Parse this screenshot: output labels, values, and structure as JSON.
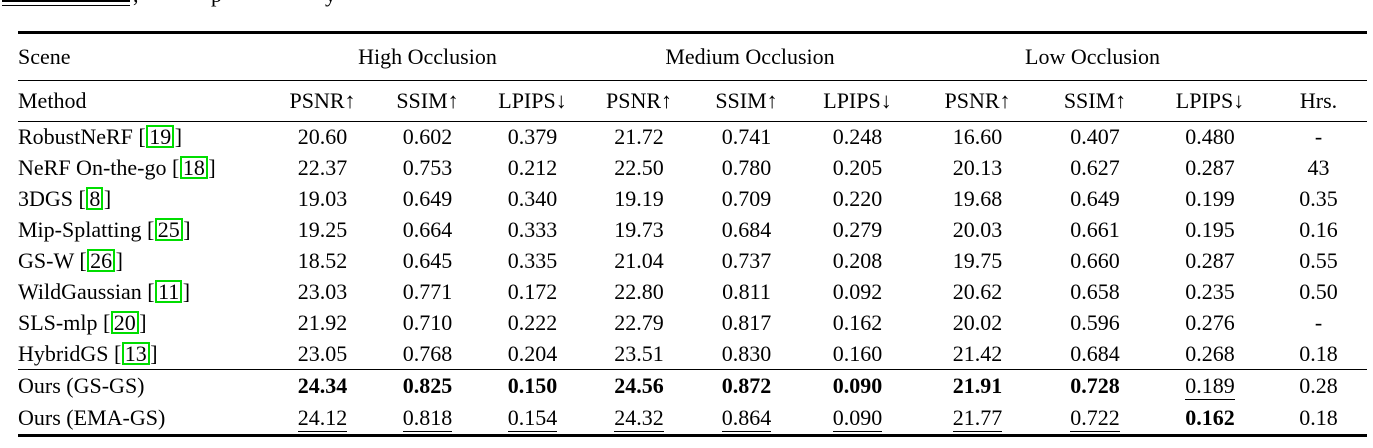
{
  "page": {
    "background": "#ffffff",
    "text_color": "#000000",
    "citation_border_color": "#00dd00"
  },
  "caption_fragment": {
    "comma": ",",
    "descender_letters": [
      "p",
      "y"
    ]
  },
  "table": {
    "scene_header": "Scene",
    "occlusion_groups": [
      "High Occlusion",
      "Medium Occlusion",
      "Low Occlusion"
    ],
    "method_header": "Method",
    "metric_headers": [
      "PSNR↑",
      "SSIM↑",
      "LPIPS↓"
    ],
    "hours_header": "Hrs.",
    "citation_brackets": {
      "open": "[",
      "close": "]"
    },
    "rows": [
      {
        "method": "RobustNeRF",
        "citation": "19",
        "values": [
          "20.60",
          "0.602",
          "0.379",
          "21.72",
          "0.741",
          "0.248",
          "16.60",
          "0.407",
          "0.480"
        ],
        "styles": [
          "",
          "",
          "",
          "",
          "",
          "",
          "",
          "",
          ""
        ],
        "hours": "-"
      },
      {
        "method": "NeRF On-the-go",
        "citation": "18",
        "values": [
          "22.37",
          "0.753",
          "0.212",
          "22.50",
          "0.780",
          "0.205",
          "20.13",
          "0.627",
          "0.287"
        ],
        "styles": [
          "",
          "",
          "",
          "",
          "",
          "",
          "",
          "",
          ""
        ],
        "hours": "43"
      },
      {
        "method": "3DGS",
        "citation": "8",
        "values": [
          "19.03",
          "0.649",
          "0.340",
          "19.19",
          "0.709",
          "0.220",
          "19.68",
          "0.649",
          "0.199"
        ],
        "styles": [
          "",
          "",
          "",
          "",
          "",
          "",
          "",
          "",
          ""
        ],
        "hours": "0.35"
      },
      {
        "method": "Mip-Splatting",
        "citation": "25",
        "values": [
          "19.25",
          "0.664",
          "0.333",
          "19.73",
          "0.684",
          "0.279",
          "20.03",
          "0.661",
          "0.195"
        ],
        "styles": [
          "",
          "",
          "",
          "",
          "",
          "",
          "",
          "",
          ""
        ],
        "hours": "0.16"
      },
      {
        "method": "GS-W",
        "citation": "26",
        "values": [
          "18.52",
          "0.645",
          "0.335",
          "21.04",
          "0.737",
          "0.208",
          "19.75",
          "0.660",
          "0.287"
        ],
        "styles": [
          "",
          "",
          "",
          "",
          "",
          "",
          "",
          "",
          ""
        ],
        "hours": "0.55"
      },
      {
        "method": "WildGaussian",
        "citation": "11",
        "values": [
          "23.03",
          "0.771",
          "0.172",
          "22.80",
          "0.811",
          "0.092",
          "20.62",
          "0.658",
          "0.235"
        ],
        "styles": [
          "",
          "",
          "",
          "",
          "",
          "",
          "",
          "",
          ""
        ],
        "hours": "0.50"
      },
      {
        "method": "SLS-mlp",
        "citation": "20",
        "values": [
          "21.92",
          "0.710",
          "0.222",
          "22.79",
          "0.817",
          "0.162",
          "20.02",
          "0.596",
          "0.276"
        ],
        "styles": [
          "",
          "",
          "",
          "",
          "",
          "",
          "",
          "",
          ""
        ],
        "hours": "-"
      },
      {
        "method": "HybridGS",
        "citation": "13",
        "values": [
          "23.05",
          "0.768",
          "0.204",
          "23.51",
          "0.830",
          "0.160",
          "21.42",
          "0.684",
          "0.268"
        ],
        "styles": [
          "",
          "",
          "",
          "",
          "",
          "",
          "",
          "",
          ""
        ],
        "hours": "0.18"
      }
    ],
    "ours_rows": [
      {
        "method": "Ours (GS-GS)",
        "citation": null,
        "values": [
          "24.34",
          "0.825",
          "0.150",
          "24.56",
          "0.872",
          "0.090",
          "21.91",
          "0.728",
          "0.189"
        ],
        "styles": [
          "b",
          "b",
          "b",
          "b",
          "b",
          "b",
          "b",
          "b",
          "u"
        ],
        "hours": "0.28"
      },
      {
        "method": "Ours (EMA-GS)",
        "citation": null,
        "values": [
          "24.12",
          "0.818",
          "0.154",
          "24.32",
          "0.864",
          "0.090",
          "21.77",
          "0.722",
          "0.162"
        ],
        "styles": [
          "u",
          "u",
          "u",
          "u",
          "u",
          "u",
          "u",
          "u",
          "b"
        ],
        "hours": "0.18"
      }
    ]
  }
}
